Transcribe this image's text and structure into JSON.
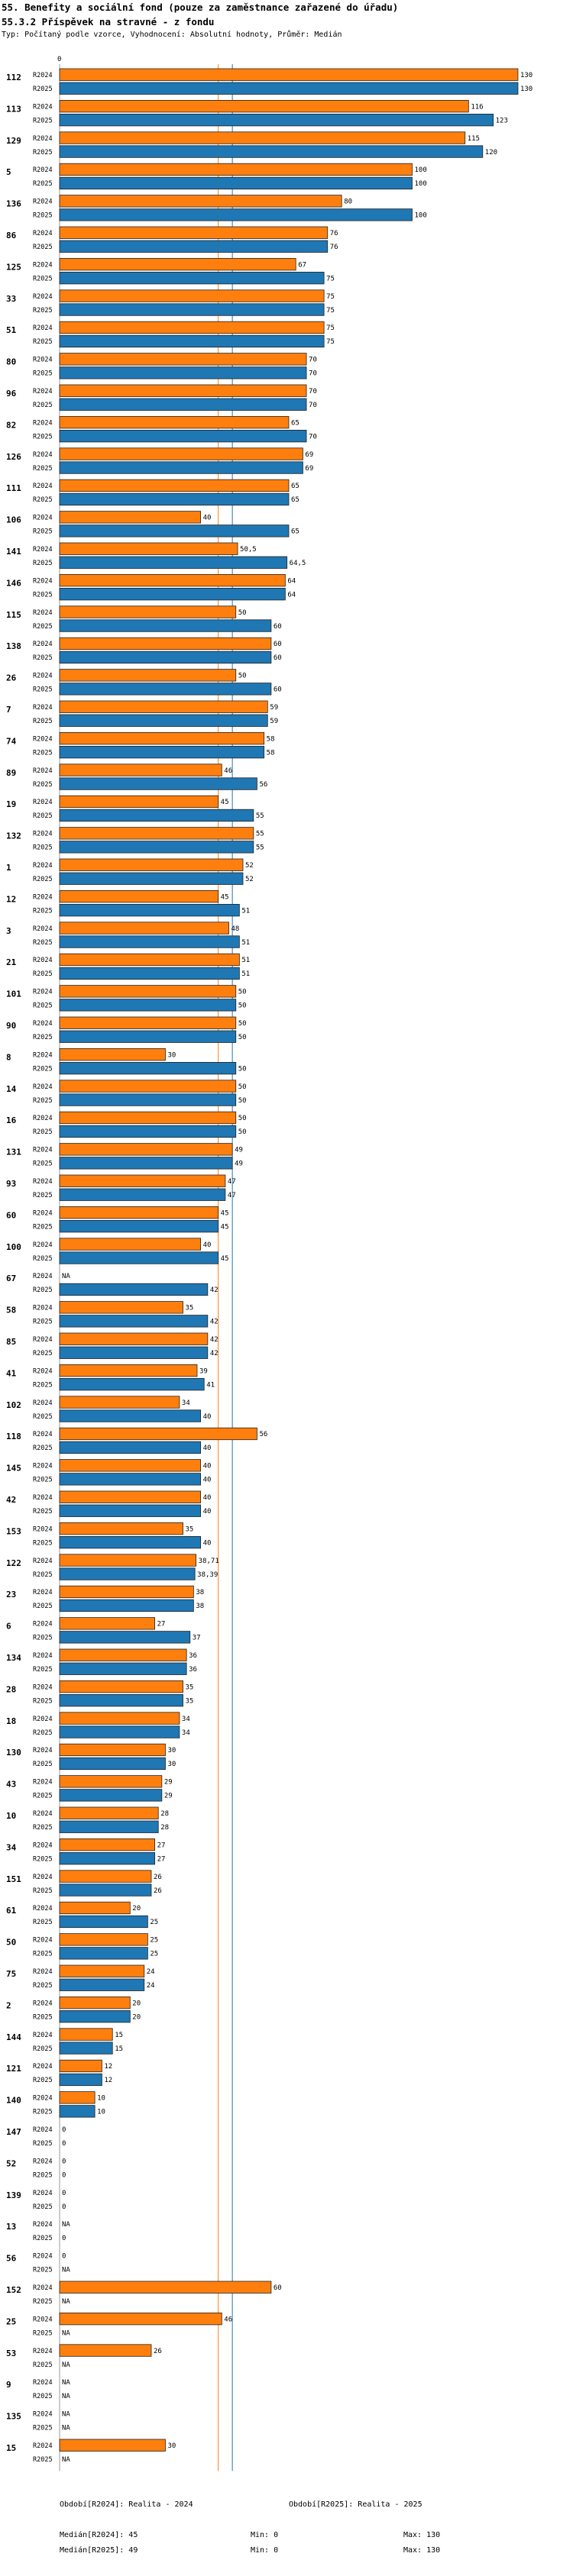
{
  "header": {
    "title": "55. Benefity a sociální fond (pouze za zaměstnance zařazené do úřadu)",
    "subtitle": "55.3.2 Příspěvek na stravné - z fondu",
    "meta": "Typ: Počítaný podle vzorce, Vyhodnocení: Absolutní hodnoty, Průměr: Medián"
  },
  "colors": {
    "r2024": "#ff7f0e",
    "r2025": "#1f77b4",
    "median2024": "#ff7f0e",
    "median2025": "#1f77b4",
    "grid": "#999999"
  },
  "chart_data": {
    "type": "bar",
    "orientation": "horizontal",
    "series_names": [
      "R2024",
      "R2025"
    ],
    "axis_zero_label": "0",
    "xlim": [
      0,
      130
    ],
    "medians": {
      "R2024": 45,
      "R2025": 49
    },
    "groups": [
      {
        "id": "112",
        "R2024": "130",
        "R2025": "130"
      },
      {
        "id": "113",
        "R2024": "116",
        "R2025": "123"
      },
      {
        "id": "129",
        "R2024": "115",
        "R2025": "120"
      },
      {
        "id": "5",
        "R2024": "100",
        "R2025": "100"
      },
      {
        "id": "136",
        "R2024": "80",
        "R2025": "100"
      },
      {
        "id": "86",
        "R2024": "76",
        "R2025": "76"
      },
      {
        "id": "125",
        "R2024": "67",
        "R2025": "75"
      },
      {
        "id": "33",
        "R2024": "75",
        "R2025": "75"
      },
      {
        "id": "51",
        "R2024": "75",
        "R2025": "75"
      },
      {
        "id": "80",
        "R2024": "70",
        "R2025": "70"
      },
      {
        "id": "96",
        "R2024": "70",
        "R2025": "70"
      },
      {
        "id": "82",
        "R2024": "65",
        "R2025": "70"
      },
      {
        "id": "126",
        "R2024": "69",
        "R2025": "69"
      },
      {
        "id": "111",
        "R2024": "65",
        "R2025": "65"
      },
      {
        "id": "106",
        "R2024": "40",
        "R2025": "65"
      },
      {
        "id": "141",
        "R2024": "50,5",
        "R2025": "64,5"
      },
      {
        "id": "146",
        "R2024": "64",
        "R2025": "64"
      },
      {
        "id": "115",
        "R2024": "50",
        "R2025": "60"
      },
      {
        "id": "138",
        "R2024": "60",
        "R2025": "60"
      },
      {
        "id": "26",
        "R2024": "50",
        "R2025": "60"
      },
      {
        "id": "7",
        "R2024": "59",
        "R2025": "59"
      },
      {
        "id": "74",
        "R2024": "58",
        "R2025": "58"
      },
      {
        "id": "89",
        "R2024": "46",
        "R2025": "56"
      },
      {
        "id": "19",
        "R2024": "45",
        "R2025": "55"
      },
      {
        "id": "132",
        "R2024": "55",
        "R2025": "55"
      },
      {
        "id": "1",
        "R2024": "52",
        "R2025": "52"
      },
      {
        "id": "12",
        "R2024": "45",
        "R2025": "51"
      },
      {
        "id": "3",
        "R2024": "48",
        "R2025": "51"
      },
      {
        "id": "21",
        "R2024": "51",
        "R2025": "51"
      },
      {
        "id": "101",
        "R2024": "50",
        "R2025": "50"
      },
      {
        "id": "90",
        "R2024": "50",
        "R2025": "50"
      },
      {
        "id": "8",
        "R2024": "30",
        "R2025": "50"
      },
      {
        "id": "14",
        "R2024": "50",
        "R2025": "50"
      },
      {
        "id": "16",
        "R2024": "50",
        "R2025": "50"
      },
      {
        "id": "131",
        "R2024": "49",
        "R2025": "49"
      },
      {
        "id": "93",
        "R2024": "47",
        "R2025": "47"
      },
      {
        "id": "60",
        "R2024": "45",
        "R2025": "45"
      },
      {
        "id": "100",
        "R2024": "40",
        "R2025": "45"
      },
      {
        "id": "67",
        "R2024": "NA",
        "R2025": "42"
      },
      {
        "id": "58",
        "R2024": "35",
        "R2025": "42"
      },
      {
        "id": "85",
        "R2024": "42",
        "R2025": "42"
      },
      {
        "id": "41",
        "R2024": "39",
        "R2025": "41"
      },
      {
        "id": "102",
        "R2024": "34",
        "R2025": "40"
      },
      {
        "id": "118",
        "R2024": "56",
        "R2025": "40"
      },
      {
        "id": "145",
        "R2024": "40",
        "R2025": "40"
      },
      {
        "id": "42",
        "R2024": "40",
        "R2025": "40"
      },
      {
        "id": "153",
        "R2024": "35",
        "R2025": "40"
      },
      {
        "id": "122",
        "R2024": "38,71",
        "R2025": "38,39"
      },
      {
        "id": "23",
        "R2024": "38",
        "R2025": "38"
      },
      {
        "id": "6",
        "R2024": "27",
        "R2025": "37"
      },
      {
        "id": "134",
        "R2024": "36",
        "R2025": "36"
      },
      {
        "id": "28",
        "R2024": "35",
        "R2025": "35"
      },
      {
        "id": "18",
        "R2024": "34",
        "R2025": "34"
      },
      {
        "id": "130",
        "R2024": "30",
        "R2025": "30"
      },
      {
        "id": "43",
        "R2024": "29",
        "R2025": "29"
      },
      {
        "id": "10",
        "R2024": "28",
        "R2025": "28"
      },
      {
        "id": "34",
        "R2024": "27",
        "R2025": "27"
      },
      {
        "id": "151",
        "R2024": "26",
        "R2025": "26"
      },
      {
        "id": "61",
        "R2024": "20",
        "R2025": "25"
      },
      {
        "id": "50",
        "R2024": "25",
        "R2025": "25"
      },
      {
        "id": "75",
        "R2024": "24",
        "R2025": "24"
      },
      {
        "id": "2",
        "R2024": "20",
        "R2025": "20"
      },
      {
        "id": "144",
        "R2024": "15",
        "R2025": "15"
      },
      {
        "id": "121",
        "R2024": "12",
        "R2025": "12"
      },
      {
        "id": "140",
        "R2024": "10",
        "R2025": "10"
      },
      {
        "id": "147",
        "R2024": "0",
        "R2025": "0"
      },
      {
        "id": "52",
        "R2024": "0",
        "R2025": "0"
      },
      {
        "id": "139",
        "R2024": "0",
        "R2025": "0"
      },
      {
        "id": "13",
        "R2024": "NA",
        "R2025": "0"
      },
      {
        "id": "56",
        "R2024": "0",
        "R2025": "NA"
      },
      {
        "id": "152",
        "R2024": "60",
        "R2025": "NA"
      },
      {
        "id": "25",
        "R2024": "46",
        "R2025": "NA"
      },
      {
        "id": "53",
        "R2024": "26",
        "R2025": "NA"
      },
      {
        "id": "9",
        "R2024": "NA",
        "R2025": "NA"
      },
      {
        "id": "135",
        "R2024": "NA",
        "R2025": "NA"
      },
      {
        "id": "15",
        "R2024": "30",
        "R2025": "NA"
      }
    ]
  },
  "footer": {
    "legend2024": "Období[R2024]: Realita - 2024",
    "legend2025": "Období[R2025]: Realita - 2025",
    "median2024": "Medián[R2024]: 45",
    "median2025": "Medián[R2025]: 49",
    "min2024": "Min: 0",
    "min2025": "Min: 0",
    "max2024": "Max: 130",
    "max2025": "Max: 130"
  }
}
